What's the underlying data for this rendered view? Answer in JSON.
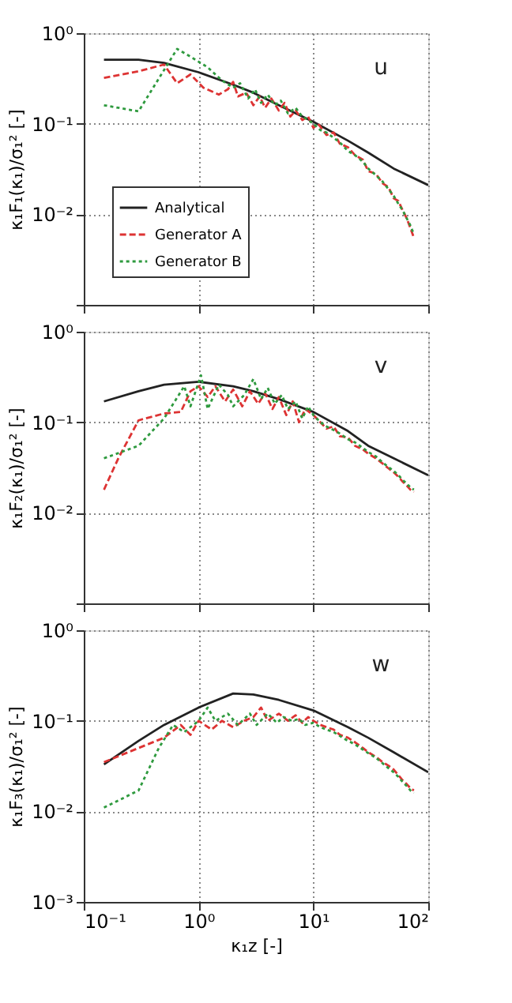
{
  "chart_data": [
    {
      "type": "line",
      "ylabel": "κ₁F₁(κ₁)/σ₁² [-]",
      "annotations": [
        "u"
      ],
      "log": "xy",
      "grid": true,
      "legend": "bottom left",
      "tick_labels": "y",
      "xlim": [
        0.1,
        100
      ],
      "xticks": [
        {
          "value": 0.1,
          "label": null
        },
        {
          "value": 1,
          "label": null
        },
        {
          "value": 10,
          "label": null
        },
        {
          "value": 100,
          "label": null
        }
      ],
      "ylim": [
        0.001,
        1
      ],
      "yticks": [
        {
          "value": 0.001,
          "label": null
        },
        {
          "value": 0.01,
          "label": "10⁻²"
        },
        {
          "value": 0.1,
          "label": "10⁻¹"
        },
        {
          "value": 1,
          "label": "10⁰"
        }
      ],
      "series": [
        {
          "name": "Analytical",
          "color": "#222222",
          "line_style": "solid",
          "x": [
            0.15,
            0.3,
            0.5,
            1,
            2,
            3,
            5,
            10,
            20,
            30,
            50,
            100
          ],
          "values": [
            0.51,
            0.51,
            0.47,
            0.37,
            0.27,
            0.22,
            0.16,
            0.105,
            0.065,
            0.048,
            0.032,
            0.021
          ]
        },
        {
          "name": "Generator A",
          "color": "#dd3333",
          "line_style": "dashed",
          "x": [
            0.15,
            0.3,
            0.5,
            0.65,
            0.85,
            1.1,
            1.5,
            1.8,
            2.0,
            2.2,
            2.6,
            3.0,
            3.4,
            3.8,
            4.3,
            5,
            5.6,
            6.3,
            7,
            8,
            9,
            10,
            11,
            13,
            15,
            17,
            20,
            23,
            27,
            30,
            35,
            40,
            45,
            50,
            55,
            60,
            65,
            70,
            75
          ],
          "values": [
            0.32,
            0.38,
            0.45,
            0.28,
            0.35,
            0.25,
            0.21,
            0.24,
            0.29,
            0.2,
            0.22,
            0.16,
            0.2,
            0.15,
            0.19,
            0.14,
            0.17,
            0.12,
            0.14,
            0.11,
            0.12,
            0.09,
            0.1,
            0.075,
            0.08,
            0.06,
            0.055,
            0.045,
            0.04,
            0.03,
            0.028,
            0.022,
            0.02,
            0.015,
            0.014,
            0.011,
            0.009,
            0.007,
            0.0055
          ]
        },
        {
          "name": "Generator B",
          "color": "#2e9a3e",
          "line_style": "dotted",
          "x": [
            0.15,
            0.3,
            0.65,
            0.85,
            1.2,
            1.6,
            2.0,
            2.3,
            2.7,
            3.1,
            3.5,
            4,
            4.6,
            5.2,
            6,
            7,
            8,
            9,
            10,
            11.5,
            13,
            15,
            17,
            20,
            23,
            27,
            30,
            35,
            40,
            45,
            50,
            55,
            60,
            65,
            70,
            75
          ],
          "values": [
            0.16,
            0.137,
            0.67,
            0.55,
            0.42,
            0.3,
            0.25,
            0.28,
            0.19,
            0.24,
            0.17,
            0.21,
            0.16,
            0.18,
            0.13,
            0.15,
            0.12,
            0.11,
            0.1,
            0.085,
            0.08,
            0.07,
            0.062,
            0.05,
            0.045,
            0.038,
            0.032,
            0.027,
            0.023,
            0.019,
            0.016,
            0.013,
            0.011,
            0.009,
            0.0075,
            0.006
          ]
        }
      ]
    },
    {
      "type": "line",
      "ylabel": "κ₁F₂(κ₁)/σ₁² [-]",
      "annotations": [
        "v"
      ],
      "log": "xy",
      "grid": true,
      "tick_labels": "y",
      "xlim": [
        0.1,
        100
      ],
      "xticks": [
        {
          "value": 0.1,
          "label": null
        },
        {
          "value": 1,
          "label": null
        },
        {
          "value": 10,
          "label": null
        },
        {
          "value": 100,
          "label": null
        }
      ],
      "ylim": [
        0.001,
        1
      ],
      "yticks": [
        {
          "value": 0.001,
          "label": null
        },
        {
          "value": 0.01,
          "label": "10⁻²"
        },
        {
          "value": 0.1,
          "label": "10⁻¹"
        },
        {
          "value": 1,
          "label": "10⁰"
        }
      ],
      "series": [
        {
          "color": "#222222",
          "line_style": "solid",
          "x": [
            0.15,
            0.3,
            0.5,
            1,
            2,
            3,
            5,
            10,
            20,
            30,
            50,
            100
          ],
          "values": [
            0.17,
            0.22,
            0.26,
            0.28,
            0.25,
            0.22,
            0.18,
            0.13,
            0.08,
            0.055,
            0.04,
            0.026
          ]
        },
        {
          "color": "#dd3333",
          "line_style": "dashed",
          "x": [
            0.15,
            0.2,
            0.3,
            0.5,
            0.7,
            0.85,
            1,
            1.2,
            1.4,
            1.7,
            2,
            2.4,
            2.8,
            3.3,
            3.8,
            4.4,
            5,
            5.8,
            6.6,
            7.5,
            8.5,
            10,
            11.5,
            13,
            15,
            17,
            20,
            23,
            27,
            30,
            35,
            40,
            45,
            50,
            55,
            60,
            65,
            70,
            75
          ],
          "values": [
            0.018,
            0.04,
            0.105,
            0.125,
            0.13,
            0.22,
            0.25,
            0.19,
            0.25,
            0.17,
            0.23,
            0.15,
            0.22,
            0.16,
            0.21,
            0.14,
            0.19,
            0.12,
            0.17,
            0.1,
            0.14,
            0.12,
            0.1,
            0.085,
            0.09,
            0.07,
            0.068,
            0.055,
            0.05,
            0.045,
            0.04,
            0.035,
            0.031,
            0.028,
            0.025,
            0.022,
            0.02,
            0.018,
            0.017
          ]
        },
        {
          "color": "#2e9a3e",
          "line_style": "dotted",
          "x": [
            0.15,
            0.3,
            0.5,
            0.75,
            0.85,
            1.05,
            1.2,
            1.5,
            1.8,
            2,
            2.5,
            3,
            3.5,
            4,
            4.6,
            5.3,
            6,
            7,
            8,
            9,
            10,
            11.5,
            13,
            15,
            17,
            20,
            23,
            27,
            30,
            35,
            40,
            45,
            50,
            55,
            60,
            65,
            70,
            75
          ],
          "values": [
            0.04,
            0.055,
            0.11,
            0.25,
            0.15,
            0.33,
            0.14,
            0.26,
            0.2,
            0.15,
            0.2,
            0.3,
            0.18,
            0.24,
            0.16,
            0.2,
            0.14,
            0.17,
            0.11,
            0.15,
            0.12,
            0.1,
            0.09,
            0.082,
            0.075,
            0.065,
            0.06,
            0.052,
            0.047,
            0.042,
            0.036,
            0.032,
            0.029,
            0.026,
            0.023,
            0.021,
            0.019,
            0.018
          ]
        }
      ]
    },
    {
      "type": "line",
      "xlabel": "κ₁z [-]",
      "ylabel": "κ₁F₃(κ₁)/σ₁² [-]",
      "annotations": [
        "w"
      ],
      "log": "xy",
      "grid": true,
      "xlim": [
        0.1,
        100
      ],
      "xticks": [
        {
          "value": 0.1,
          "label": "10⁻¹"
        },
        {
          "value": 1,
          "label": "10⁰"
        },
        {
          "value": 10,
          "label": "10¹"
        },
        {
          "value": 100,
          "label": "10²"
        }
      ],
      "ylim": [
        0.001,
        1
      ],
      "yticks": [
        {
          "value": 0.001,
          "label": "10⁻³"
        },
        {
          "value": 0.01,
          "label": "10⁻²"
        },
        {
          "value": 0.1,
          "label": "10⁻¹"
        },
        {
          "value": 1,
          "label": "10⁰"
        }
      ],
      "series": [
        {
          "color": "#222222",
          "line_style": "solid",
          "x": [
            0.15,
            0.3,
            0.5,
            1,
            2,
            3,
            5,
            10,
            20,
            30,
            50,
            100
          ],
          "values": [
            0.033,
            0.06,
            0.09,
            0.14,
            0.2,
            0.195,
            0.17,
            0.13,
            0.085,
            0.065,
            0.045,
            0.027
          ]
        },
        {
          "color": "#dd3333",
          "line_style": "dashed",
          "x": [
            0.15,
            0.3,
            0.5,
            0.7,
            0.85,
            1,
            1.3,
            1.6,
            2,
            2.5,
            3,
            3.5,
            4,
            5,
            6,
            7,
            8,
            9,
            10,
            11.5,
            13,
            15,
            17,
            20,
            23,
            27,
            30,
            35,
            40,
            45,
            50,
            55,
            60,
            65,
            70,
            75
          ],
          "values": [
            0.035,
            0.05,
            0.065,
            0.09,
            0.07,
            0.1,
            0.08,
            0.1,
            0.085,
            0.1,
            0.11,
            0.14,
            0.1,
            0.12,
            0.1,
            0.115,
            0.095,
            0.11,
            0.1,
            0.09,
            0.085,
            0.08,
            0.07,
            0.065,
            0.058,
            0.05,
            0.045,
            0.04,
            0.035,
            0.032,
            0.029,
            0.025,
            0.022,
            0.02,
            0.018,
            0.017
          ]
        },
        {
          "color": "#2e9a3e",
          "line_style": "dotted",
          "x": [
            0.15,
            0.3,
            0.45,
            0.6,
            0.75,
            1,
            1.2,
            1.4,
            1.8,
            2.2,
            2.8,
            3.2,
            4,
            4.8,
            5.5,
            6.5,
            7.5,
            8.5,
            10,
            11.5,
            13,
            15,
            17,
            20,
            23,
            27,
            30,
            35,
            40,
            45,
            50,
            55,
            60,
            65,
            70,
            75
          ],
          "values": [
            0.011,
            0.017,
            0.05,
            0.09,
            0.075,
            0.1,
            0.14,
            0.1,
            0.12,
            0.09,
            0.12,
            0.09,
            0.12,
            0.095,
            0.11,
            0.1,
            0.105,
            0.09,
            0.095,
            0.085,
            0.08,
            0.075,
            0.068,
            0.06,
            0.055,
            0.048,
            0.044,
            0.039,
            0.034,
            0.03,
            0.027,
            0.024,
            0.021,
            0.019,
            0.017,
            0.016
          ]
        }
      ]
    }
  ]
}
